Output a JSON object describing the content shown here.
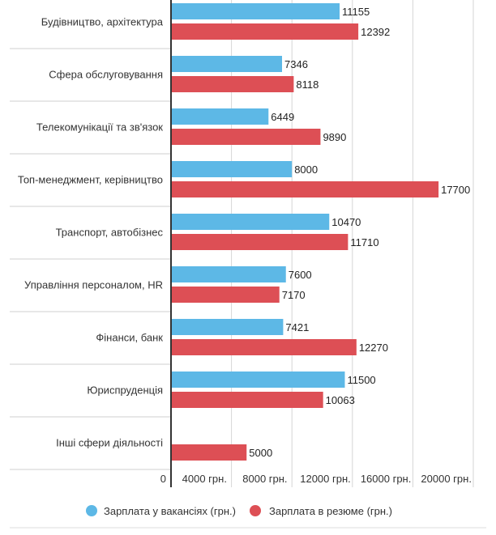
{
  "chart_data": {
    "type": "bar",
    "orientation": "horizontal",
    "categories": [
      "Будівництво, архітектура",
      "Сфера обслуговування",
      "Телекомунікації та зв'язок",
      "Топ-менеджмент, керівництво",
      "Транспорт, автобізнес",
      "Управління персоналом, HR",
      "Фінанси, банк",
      "Юриспруденція",
      "Інші сфери діяльності"
    ],
    "series": [
      {
        "name": "Зарплата у вакансіях (грн.)",
        "color": "#5DB8E6",
        "values": [
          11155,
          7346,
          6449,
          8000,
          10470,
          7600,
          7421,
          11500,
          null
        ]
      },
      {
        "name": "Зарплата в резюме (грн.)",
        "color": "#DD4F55",
        "values": [
          12392,
          8118,
          9890,
          17700,
          11710,
          7170,
          12270,
          10063,
          5000
        ]
      }
    ],
    "value_labels": [
      [
        "11155",
        "12392"
      ],
      [
        "7346",
        "8118"
      ],
      [
        "6449",
        "9890"
      ],
      [
        "8000",
        "17700"
      ],
      [
        "10470",
        "11710"
      ],
      [
        "7600",
        "7170"
      ],
      [
        "7421",
        "12270"
      ],
      [
        "11500",
        "10063"
      ],
      [
        "",
        "5000"
      ]
    ],
    "ticks": [
      0,
      4000,
      8000,
      12000,
      16000,
      20000
    ],
    "tick_labels": [
      "0",
      "4000 грн.",
      "8000 грн.",
      "12000 грн.",
      "16000 грн.",
      "20000 грн."
    ],
    "xlim": [
      0,
      20000
    ],
    "grid": true,
    "legend_position": "bottom"
  }
}
